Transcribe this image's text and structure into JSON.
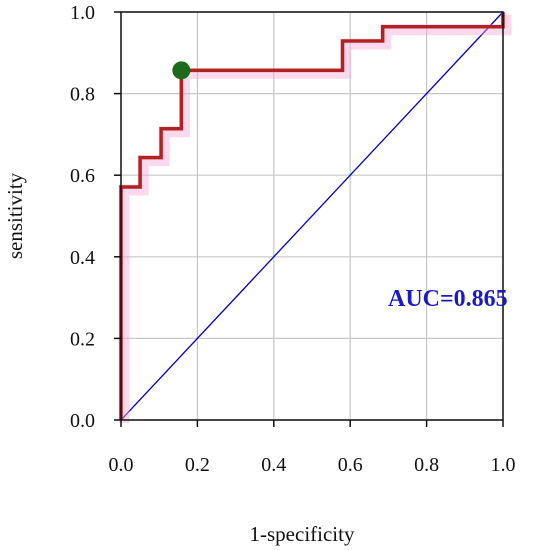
{
  "chart_data": {
    "type": "line",
    "title": "",
    "xlabel": "1-specificity",
    "ylabel": "sensitivity",
    "xlim": [
      0,
      1
    ],
    "ylim": [
      0,
      1
    ],
    "x_ticks": [
      "0.0",
      "0.2",
      "0.4",
      "0.6",
      "0.8",
      "1.0"
    ],
    "y_ticks": [
      "0.0",
      "0.2",
      "0.4",
      "0.6",
      "0.8",
      "1.0"
    ],
    "grid": true,
    "series": [
      {
        "color": "#b22222",
        "x": [
          0,
          0,
          0.01,
          0.01,
          0.05,
          0.05,
          0.105,
          0.105,
          0.158,
          0.158,
          0.58,
          0.58,
          0.685,
          0.685,
          1.0,
          1.0
        ],
        "y": [
          0,
          0.571,
          0.571,
          0.571,
          0.571,
          0.643,
          0.643,
          0.714,
          0.714,
          0.857,
          0.857,
          0.929,
          0.929,
          0.964,
          0.964,
          1.0
        ]
      },
      {
        "color": "#0000cd",
        "x": [
          0,
          1
        ],
        "y": [
          0,
          1
        ]
      }
    ],
    "highlight_point": {
      "x": 0.158,
      "y": 0.857,
      "color": "#1a6b1a"
    },
    "annotation": {
      "text": "AUC=0.865",
      "color": "#1a1acd"
    }
  }
}
